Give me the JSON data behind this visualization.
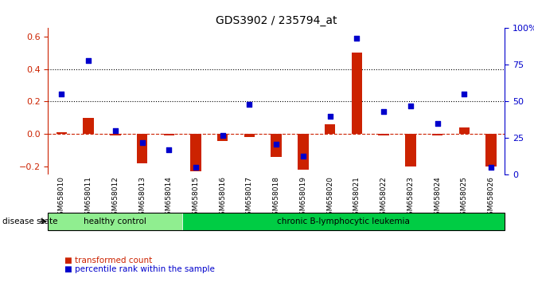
{
  "title": "GDS3902 / 235794_at",
  "samples": [
    "GSM658010",
    "GSM658011",
    "GSM658012",
    "GSM658013",
    "GSM658014",
    "GSM658015",
    "GSM658016",
    "GSM658017",
    "GSM658018",
    "GSM658019",
    "GSM658020",
    "GSM658021",
    "GSM658022",
    "GSM658023",
    "GSM658024",
    "GSM658025",
    "GSM658026"
  ],
  "transformed_count": [
    0.01,
    0.1,
    -0.01,
    -0.18,
    -0.01,
    -0.23,
    -0.04,
    -0.02,
    -0.14,
    -0.22,
    0.06,
    0.5,
    -0.01,
    -0.2,
    -0.01,
    0.04,
    -0.2
  ],
  "percentile_rank": [
    55,
    78,
    30,
    22,
    17,
    5,
    27,
    48,
    21,
    13,
    40,
    93,
    43,
    47,
    35,
    55,
    5
  ],
  "group_labels": [
    "healthy control",
    "chronic B-lymphocytic leukemia"
  ],
  "group_counts": [
    5,
    12
  ],
  "group_colors": [
    "#90ee90",
    "#00cc44"
  ],
  "bar_color": "#cc2200",
  "dot_color": "#0000cc",
  "ylim_left": [
    -0.25,
    0.65
  ],
  "ylim_right": [
    0,
    100
  ],
  "yticks_left": [
    -0.2,
    0.0,
    0.2,
    0.4,
    0.6
  ],
  "yticks_right": [
    0,
    25,
    50,
    75,
    100
  ],
  "hlines": [
    0.2,
    0.4
  ],
  "disease_state_label": "disease state",
  "legend_items": [
    "transformed count",
    "percentile rank within the sample"
  ]
}
